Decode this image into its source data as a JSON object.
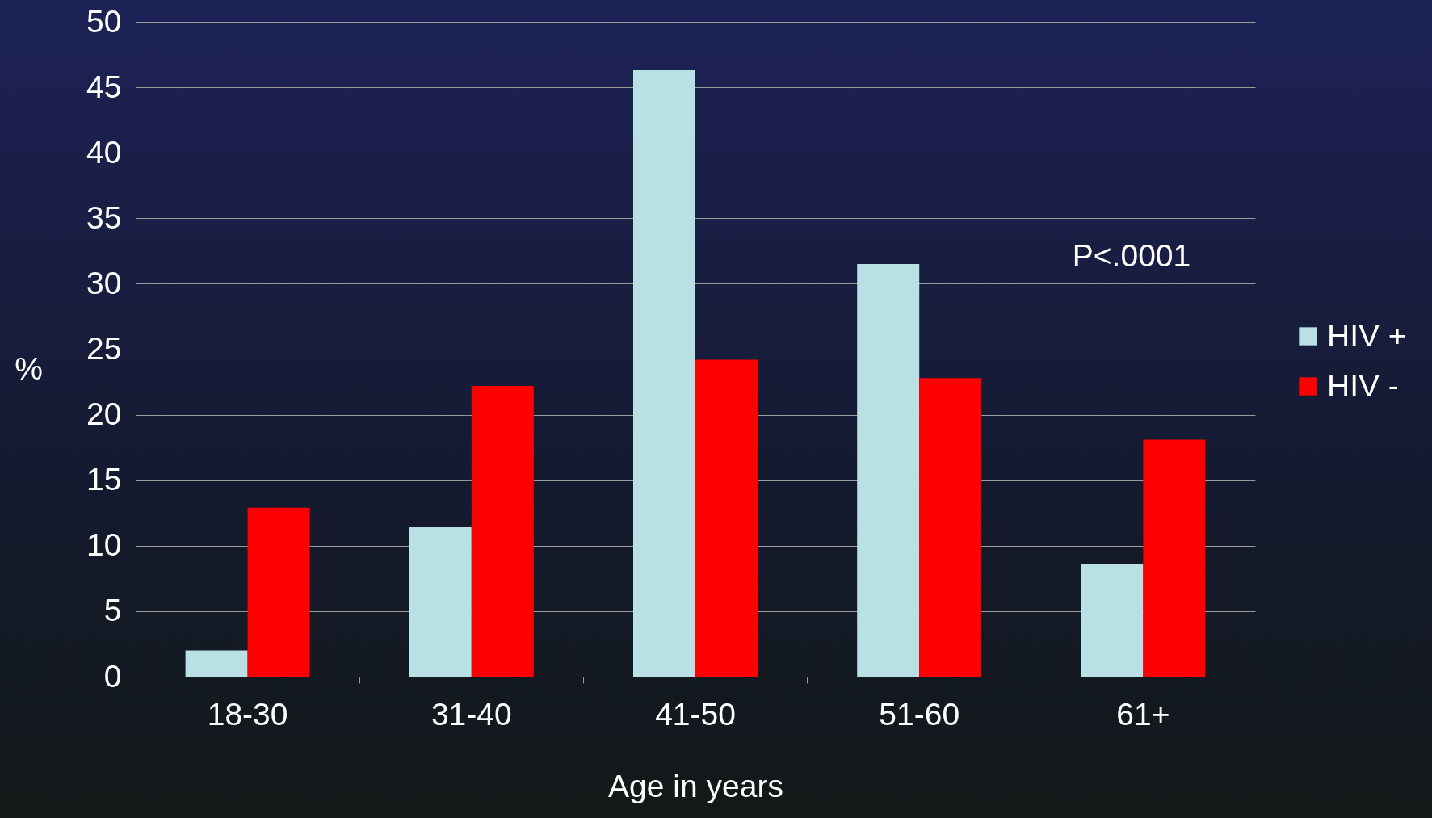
{
  "chart_data": {
    "type": "bar",
    "xlabel": "Age in years",
    "ylabel": "%",
    "categories": [
      "18-30",
      "31-40",
      "41-50",
      "51-60",
      "61+"
    ],
    "series": [
      {
        "name": "HIV +",
        "color": "#b9e0e5",
        "values": [
          2.0,
          11.4,
          46.3,
          31.5,
          8.6
        ]
      },
      {
        "name": "HIV -",
        "color": "#ff0000",
        "values": [
          12.9,
          22.2,
          24.2,
          22.8,
          18.1
        ]
      }
    ],
    "ylim": [
      0,
      50
    ],
    "yticks": [
      0,
      5,
      10,
      15,
      20,
      25,
      30,
      35,
      40,
      45,
      50
    ],
    "grid": "y",
    "legend": "right",
    "annotations": [
      "P<.0001"
    ]
  }
}
